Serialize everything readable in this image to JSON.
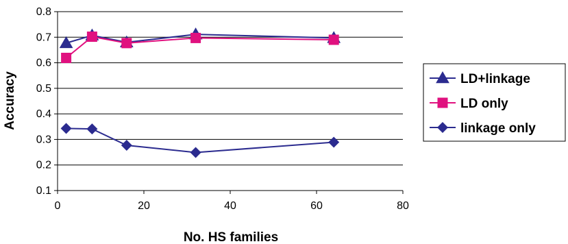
{
  "chart_data": {
    "type": "line",
    "title": "",
    "xlabel": "No. HS families",
    "ylabel": "Accuracy",
    "xlim": [
      0,
      80
    ],
    "ylim": [
      0.1,
      0.8
    ],
    "xticks": [
      0,
      20,
      40,
      60,
      80
    ],
    "yticks": [
      0.1,
      0.2,
      0.3,
      0.4,
      0.5,
      0.6,
      0.7,
      0.8
    ],
    "ytick_labels": [
      "0.1",
      "0.2",
      "0.3",
      "0.4",
      "0.5",
      "0.6",
      "0.7",
      "0.8"
    ],
    "xtick_labels": [
      "0",
      "20",
      "40",
      "60",
      "80"
    ],
    "grid": "horizontal",
    "legend_position": "right",
    "series": [
      {
        "name": "LD+linkage",
        "marker": "triangle",
        "color": "#2b2b8f",
        "x": [
          2,
          8,
          16,
          32,
          64
        ],
        "y": [
          0.677,
          0.707,
          0.68,
          0.711,
          0.697
        ]
      },
      {
        "name": "LD only",
        "marker": "square",
        "color": "#e0117f",
        "x": [
          2,
          8,
          16,
          32,
          64
        ],
        "y": [
          0.619,
          0.702,
          0.677,
          0.697,
          0.69
        ]
      },
      {
        "name": "linkage only",
        "marker": "diamond",
        "color": "#2b2b8f",
        "x": [
          2,
          8,
          16,
          32,
          64
        ],
        "y": [
          0.343,
          0.341,
          0.277,
          0.249,
          0.289
        ]
      }
    ]
  }
}
